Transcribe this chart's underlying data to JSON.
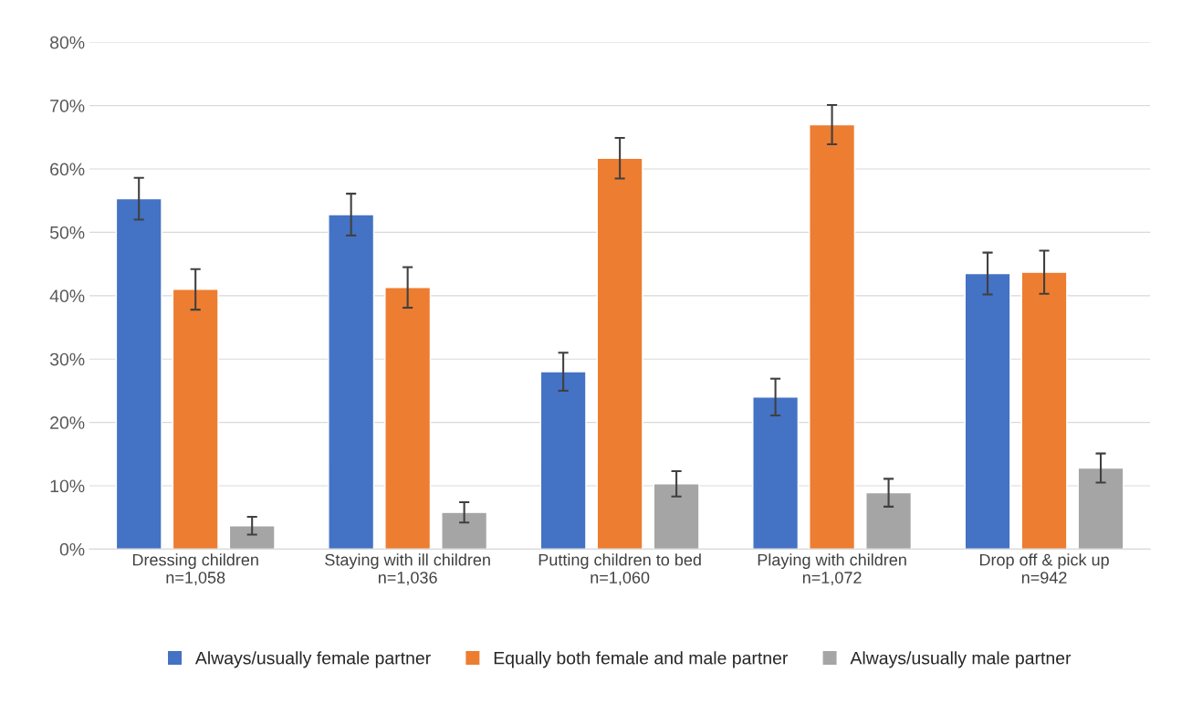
{
  "chart_data": {
    "type": "bar",
    "categories": [
      "Dressing children\nn=1,058",
      "Staying with ill children\nn=1,036",
      "Putting children to bed\nn=1,060",
      "Playing with children\nn=1,072",
      "Drop off & pick up\nn=942"
    ],
    "series": [
      {
        "name": "Always/usually female partner",
        "color": "#4472c4",
        "values": [
          55.3,
          52.8,
          28,
          24,
          43.5
        ],
        "errors": [
          3.3,
          3.3,
          3,
          2.9,
          3.3
        ]
      },
      {
        "name": "Equally both female and male partner",
        "color": "#ed7d31",
        "values": [
          41,
          41.3,
          61.7,
          67,
          43.7
        ],
        "errors": [
          3.2,
          3.2,
          3.2,
          3.1,
          3.4
        ]
      },
      {
        "name": "Always/usually male partner",
        "color": "#a5a5a5",
        "values": [
          3.7,
          5.8,
          10.3,
          8.9,
          12.8
        ],
        "errors": [
          1.4,
          1.6,
          2,
          2.2,
          2.3
        ]
      }
    ],
    "ylim": [
      0,
      80
    ],
    "yticks": [
      {
        "value": 0,
        "label": "0%"
      },
      {
        "value": 10,
        "label": "10%"
      },
      {
        "value": 20,
        "label": "20%"
      },
      {
        "value": 30,
        "label": "30%"
      },
      {
        "value": 40,
        "label": "40%"
      },
      {
        "value": 50,
        "label": "50%"
      },
      {
        "value": 60,
        "label": "60%"
      },
      {
        "value": 70,
        "label": "70%"
      },
      {
        "value": 80,
        "label": "80%"
      }
    ],
    "grid": "y",
    "legend": "bottom"
  }
}
